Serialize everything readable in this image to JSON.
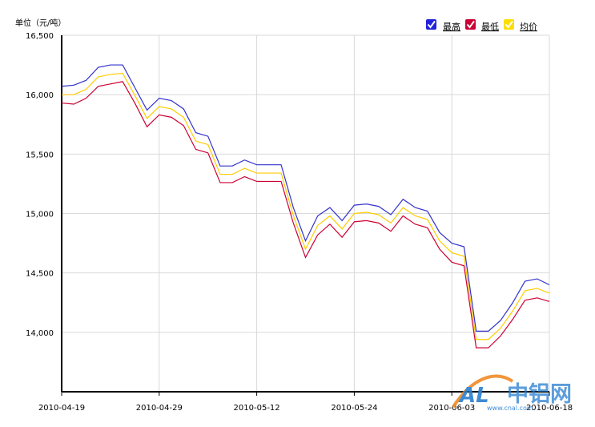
{
  "chart_data": {
    "type": "line",
    "ylabel": "单位（元/吨）",
    "ylim": [
      13500,
      16500
    ],
    "yticks": [
      14000,
      14500,
      15000,
      15500,
      16000,
      16500
    ],
    "ytick_labels": [
      "14,000",
      "14,500",
      "15,000",
      "15,500",
      "16,000",
      "16,500"
    ],
    "xtick_labels": [
      "2010-04-19",
      "2010-04-29",
      "2010-05-12",
      "2010-05-24",
      "2010-06-03",
      "2010-06-18"
    ],
    "xtick_indices": [
      0,
      8,
      16,
      24,
      32,
      40
    ],
    "grid": true,
    "legend_position": "top-right",
    "series": [
      {
        "name": "最高",
        "color": "#3333cc",
        "values": [
          16070,
          16080,
          16120,
          16230,
          16250,
          16250,
          16060,
          15870,
          15970,
          15950,
          15880,
          15680,
          15650,
          15400,
          15400,
          15450,
          15410,
          15410,
          15410,
          15050,
          14770,
          14980,
          15050,
          14940,
          15070,
          15080,
          15060,
          14990,
          15120,
          15050,
          15020,
          14840,
          14750,
          14720,
          14010,
          14010,
          14100,
          14250,
          14430,
          14450,
          14400
        ]
      },
      {
        "name": "最低",
        "color": "#cc0033",
        "values": [
          15930,
          15920,
          15970,
          16070,
          16090,
          16110,
          15930,
          15730,
          15830,
          15810,
          15740,
          15540,
          15510,
          15260,
          15260,
          15310,
          15270,
          15270,
          15270,
          14920,
          14630,
          14820,
          14910,
          14800,
          14930,
          14940,
          14920,
          14850,
          14980,
          14910,
          14880,
          14700,
          14590,
          14560,
          13870,
          13870,
          13970,
          14110,
          14270,
          14290,
          14260
        ]
      },
      {
        "name": "均价",
        "color": "#ffcc00",
        "values": [
          16000,
          16000,
          16045,
          16150,
          16170,
          16180,
          15995,
          15800,
          15900,
          15880,
          15810,
          15610,
          15580,
          15330,
          15330,
          15380,
          15340,
          15340,
          15340,
          14985,
          14700,
          14900,
          14980,
          14870,
          15000,
          15010,
          14990,
          14920,
          15050,
          14980,
          14950,
          14770,
          14670,
          14640,
          13940,
          13940,
          14035,
          14180,
          14350,
          14370,
          14330
        ]
      }
    ]
  },
  "legend": {
    "items": [
      {
        "label": "最高",
        "color": "#3333cc"
      },
      {
        "label": "最低",
        "color": "#cc0033"
      },
      {
        "label": "均价",
        "color": "#ffcc00"
      }
    ]
  },
  "watermark": {
    "logo_text": "AL",
    "brand_text": "中铝网",
    "url_text": "www.cnal.com"
  }
}
